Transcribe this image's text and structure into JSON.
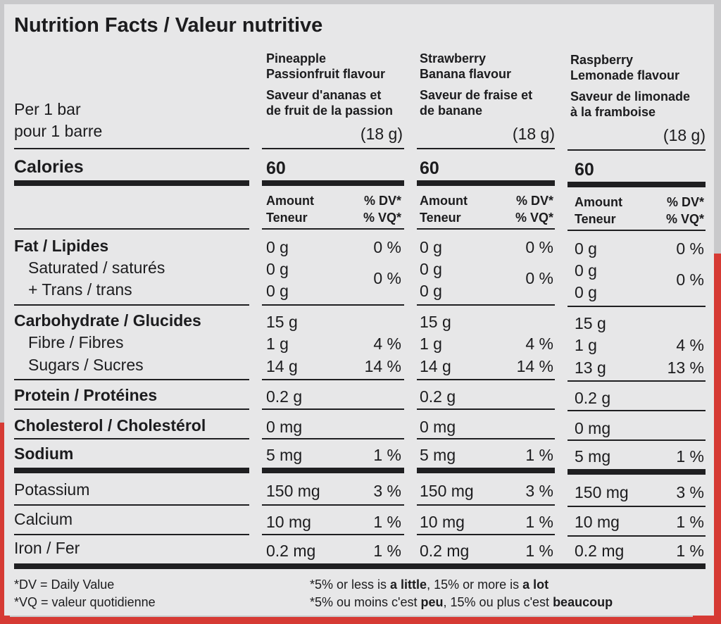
{
  "title": "Nutrition Facts / Valeur nutritive",
  "serving": {
    "en": "Per 1 bar",
    "fr": "pour 1 barre"
  },
  "calories_label": "Calories",
  "amount_header": {
    "amount": "Amount",
    "teneur": "Teneur",
    "dv": "% DV*",
    "vq": "% VQ*"
  },
  "columns": [
    {
      "name_en_1": "Pineapple",
      "name_en_2": "Passionfruit flavour",
      "name_fr_1": "Saveur d'ananas et",
      "name_fr_2": "de fruit de la passion",
      "size": "(18 g)",
      "calories": "60",
      "fat": "0 g",
      "fat_dv": "0 %",
      "sat": "0 g",
      "trans": "0 g",
      "sat_trans_dv": "0 %",
      "carb": "15 g",
      "fibre": "1 g",
      "fibre_dv": "4 %",
      "sugars": "14 g",
      "sugars_dv": "14 %",
      "protein": "0.2 g",
      "cholesterol": "0 mg",
      "sodium": "5 mg",
      "sodium_dv": "1 %",
      "potassium": "150 mg",
      "potassium_dv": "3 %",
      "calcium": "10 mg",
      "calcium_dv": "1 %",
      "iron": "0.2 mg",
      "iron_dv": "1 %"
    },
    {
      "name_en_1": "Strawberry",
      "name_en_2": "Banana flavour",
      "name_fr_1": "Saveur de fraise et",
      "name_fr_2": "de banane",
      "size": "(18 g)",
      "calories": "60",
      "fat": "0 g",
      "fat_dv": "0 %",
      "sat": "0 g",
      "trans": "0 g",
      "sat_trans_dv": "0 %",
      "carb": "15 g",
      "fibre": "1 g",
      "fibre_dv": "4 %",
      "sugars": "14 g",
      "sugars_dv": "14 %",
      "protein": "0.2 g",
      "cholesterol": "0 mg",
      "sodium": "5 mg",
      "sodium_dv": "1 %",
      "potassium": "150 mg",
      "potassium_dv": "3 %",
      "calcium": "10 mg",
      "calcium_dv": "1 %",
      "iron": "0.2 mg",
      "iron_dv": "1 %"
    },
    {
      "name_en_1": "Raspberry",
      "name_en_2": "Lemonade flavour",
      "name_fr_1": "Saveur de limonade",
      "name_fr_2": "à la framboise",
      "size": "(18 g)",
      "calories": "60",
      "fat": "0 g",
      "fat_dv": "0 %",
      "sat": "0 g",
      "trans": "0 g",
      "sat_trans_dv": "0 %",
      "carb": "15 g",
      "fibre": "1 g",
      "fibre_dv": "4 %",
      "sugars": "13 g",
      "sugars_dv": "13 %",
      "protein": "0.2 g",
      "cholesterol": "0 mg",
      "sodium": "5 mg",
      "sodium_dv": "1 %",
      "potassium": "150 mg",
      "potassium_dv": "3 %",
      "calcium": "10 mg",
      "calcium_dv": "1 %",
      "iron": "0.2 mg",
      "iron_dv": "1 %"
    }
  ],
  "rows": {
    "fat": "Fat / Lipides",
    "saturated": "Saturated / saturés",
    "trans": "+ Trans / trans",
    "carbohydrate": "Carbohydrate / Glucides",
    "fibre": "Fibre / Fibres",
    "sugars": "Sugars / Sucres",
    "protein": "Protein / Protéines",
    "cholesterol": "Cholesterol / Cholestérol",
    "sodium": "Sodium",
    "potassium": "Potassium",
    "calcium": "Calcium",
    "iron": "Iron / Fer"
  },
  "footnotes": {
    "dv": "*DV = Daily Value",
    "vq": "*VQ = valeur quotidienne",
    "en_a": "*5% or less is ",
    "en_b": "a little",
    "en_c": ", 15% or more is ",
    "en_d": "a lot",
    "fr_a": "*5% ou moins c'est ",
    "fr_b": "peu",
    "fr_c": ", 15% ou plus c'est ",
    "fr_d": "beaucoup"
  },
  "colors": {
    "panel": "#e7e7e8",
    "ink": "#1c1c1e",
    "red": "#d63a34"
  }
}
